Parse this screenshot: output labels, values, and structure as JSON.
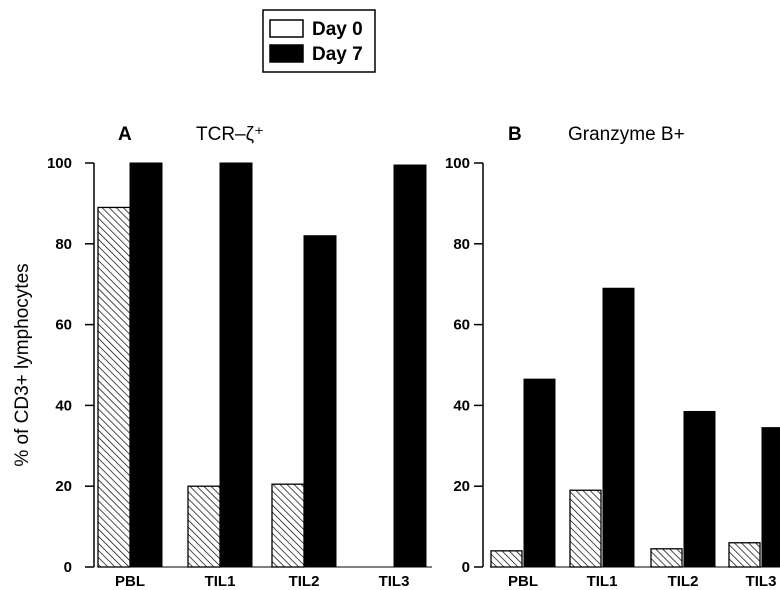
{
  "legend": {
    "entries": [
      {
        "label": "Day 0",
        "style": "hatched"
      },
      {
        "label": "Day 7",
        "style": "solid"
      }
    ]
  },
  "chart_data": [
    {
      "type": "bar",
      "panel": "A",
      "title": "TCR–ζ⁺",
      "ylabel": "% of CD3+ lymphocytes",
      "categories": [
        "PBL",
        "TIL1",
        "TIL2",
        "TIL3"
      ],
      "ylim": [
        0,
        100
      ],
      "yticks": [
        0,
        20,
        40,
        60,
        80,
        100
      ],
      "series": [
        {
          "name": "Day 0",
          "values": [
            89,
            20,
            20.5,
            null
          ]
        },
        {
          "name": "Day 7",
          "values": [
            100,
            100,
            82,
            99.5
          ]
        }
      ]
    },
    {
      "type": "bar",
      "panel": "B",
      "title": "Granzyme B+",
      "categories": [
        "PBL",
        "TIL1",
        "TIL2",
        "TIL3"
      ],
      "ylim": [
        0,
        100
      ],
      "yticks": [
        0,
        20,
        40,
        60,
        80,
        100
      ],
      "series": [
        {
          "name": "Day 0",
          "values": [
            4,
            19,
            4.5,
            6
          ]
        },
        {
          "name": "Day 7",
          "values": [
            46.5,
            69,
            38.5,
            34.5
          ]
        }
      ]
    }
  ]
}
